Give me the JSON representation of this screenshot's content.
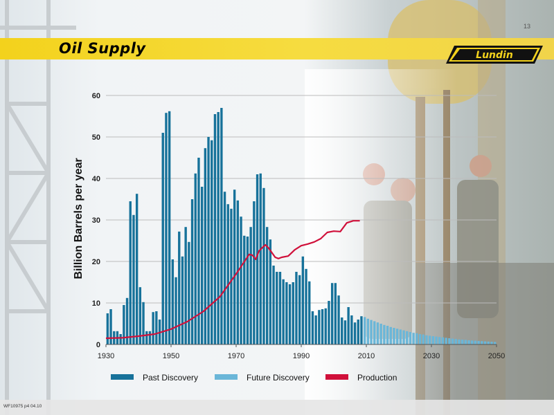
{
  "slide": {
    "title": "Oil Supply",
    "page_number": "13",
    "logo_text": "Lundin",
    "footer_ref": "WF10975 p4 04.10"
  },
  "colors": {
    "title_band": "#f3d21c",
    "past_discovery": "#17729a",
    "future_discovery": "#6ab6d8",
    "production": "#d0103a",
    "gridline": "#bcbcbc"
  },
  "icons": [
    "lundin-logo",
    "oil-rig-photo"
  ],
  "chart_data": {
    "type": "bar",
    "ylabel": "Billion Barrels per year",
    "xlabel": "",
    "xlim": [
      1930,
      2050
    ],
    "ylim": [
      0,
      60
    ],
    "x_ticks": [
      1930,
      1950,
      1970,
      1990,
      2010,
      2030,
      2050
    ],
    "y_ticks": [
      0,
      10,
      20,
      30,
      40,
      50,
      60
    ],
    "grid": true,
    "legend_position": "bottom",
    "series": [
      {
        "name": "Past Discovery",
        "type": "bar",
        "x": [
          1930,
          1931,
          1932,
          1933,
          1934,
          1935,
          1936,
          1937,
          1938,
          1939,
          1940,
          1941,
          1942,
          1943,
          1944,
          1945,
          1946,
          1947,
          1948,
          1949,
          1950,
          1951,
          1952,
          1953,
          1954,
          1955,
          1956,
          1957,
          1958,
          1959,
          1960,
          1961,
          1962,
          1963,
          1964,
          1965,
          1966,
          1967,
          1968,
          1969,
          1970,
          1971,
          1972,
          1973,
          1974,
          1975,
          1976,
          1977,
          1978,
          1979,
          1980,
          1981,
          1982,
          1983,
          1984,
          1985,
          1986,
          1987,
          1988,
          1989,
          1990,
          1991,
          1992,
          1993,
          1994,
          1995,
          1996,
          1997,
          1998,
          1999,
          2000,
          2001,
          2002,
          2003,
          2004,
          2005,
          2006,
          2007,
          2008
        ],
        "values": [
          7.5,
          8.5,
          3.2,
          3.2,
          2.5,
          9.5,
          11.2,
          34.5,
          31.2,
          36.3,
          13.8,
          10.2,
          3.2,
          3.2,
          7.8,
          8.0,
          6.0,
          51.0,
          55.8,
          56.2,
          20.5,
          16.2,
          27.2,
          21.2,
          28.3,
          24.7,
          35.0,
          41.2,
          45.0,
          38.0,
          47.3,
          50.0,
          49.2,
          55.5,
          56.0,
          57.0,
          36.8,
          33.8,
          32.7,
          37.3,
          34.7,
          30.8,
          26.2,
          26.0,
          28.3,
          34.5,
          41.0,
          41.2,
          37.7,
          28.3,
          25.3,
          19.0,
          17.5,
          17.5,
          15.7,
          15.0,
          14.5,
          15.0,
          17.5,
          16.7,
          21.2,
          18.2,
          15.2,
          8.0,
          7.0,
          8.3,
          8.5,
          8.7,
          10.5,
          14.8,
          14.8,
          11.8,
          6.5,
          5.8,
          9.0,
          7.0,
          5.3,
          6.0,
          6.8
        ]
      },
      {
        "name": "Future Discovery",
        "type": "bar",
        "x": [
          2009,
          2010,
          2011,
          2012,
          2013,
          2014,
          2015,
          2016,
          2017,
          2018,
          2019,
          2020,
          2021,
          2022,
          2023,
          2024,
          2025,
          2026,
          2027,
          2028,
          2029,
          2030,
          2031,
          2032,
          2033,
          2034,
          2035,
          2036,
          2037,
          2038,
          2039,
          2040,
          2041,
          2042,
          2043,
          2044,
          2045,
          2046,
          2047,
          2048,
          2049
        ],
        "values": [
          6.6,
          6.2,
          5.9,
          5.6,
          5.3,
          5.0,
          4.7,
          4.5,
          4.2,
          4.0,
          3.8,
          3.6,
          3.4,
          3.2,
          3.0,
          2.8,
          2.7,
          2.5,
          2.4,
          2.2,
          2.1,
          2.0,
          1.9,
          1.8,
          1.7,
          1.6,
          1.5,
          1.4,
          1.3,
          1.2,
          1.15,
          1.1,
          1.0,
          0.95,
          0.9,
          0.85,
          0.8,
          0.75,
          0.7,
          0.65,
          0.6
        ]
      },
      {
        "name": "Production",
        "type": "line",
        "x": [
          1930,
          1935,
          1940,
          1945,
          1950,
          1955,
          1960,
          1965,
          1970,
          1974,
          1975,
          1976,
          1977,
          1978,
          1979,
          1980,
          1982,
          1983,
          1984,
          1986,
          1988,
          1990,
          1992,
          1994,
          1996,
          1998,
          2000,
          2002,
          2004,
          2006,
          2008
        ],
        "values": [
          1.5,
          1.6,
          2.0,
          2.5,
          3.7,
          5.5,
          8.0,
          11.5,
          17.0,
          21.7,
          21.5,
          20.5,
          22.5,
          23.3,
          24.0,
          23.2,
          21.0,
          20.7,
          21.0,
          21.3,
          22.8,
          23.8,
          24.2,
          24.7,
          25.5,
          27.0,
          27.3,
          27.2,
          29.3,
          29.8,
          29.8
        ]
      }
    ]
  }
}
